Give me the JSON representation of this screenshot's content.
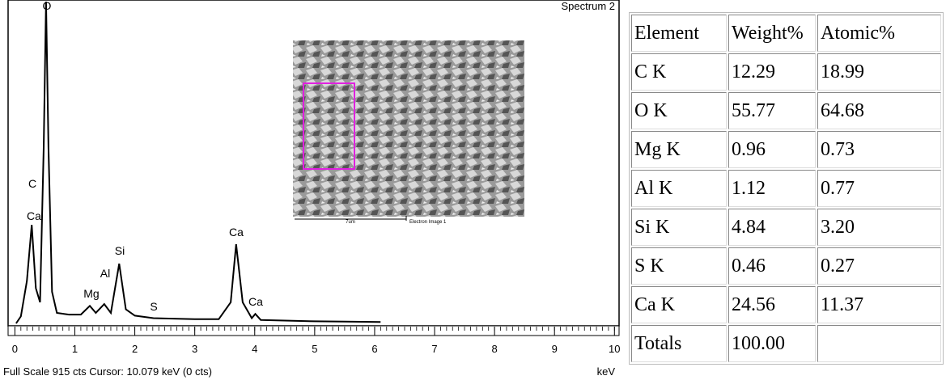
{
  "chart_data": {
    "type": "line",
    "title": "Spectrum 2",
    "x_label": "keV",
    "footer": "Full Scale 915 cts  Cursor: 10.079 keV (0 cts)",
    "x": [
      0.1,
      0.2,
      0.28,
      0.35,
      0.42,
      0.48,
      0.52,
      0.56,
      0.62,
      0.7,
      0.9,
      1.1,
      1.25,
      1.35,
      1.49,
      1.6,
      1.74,
      1.85,
      2.0,
      2.31,
      2.5,
      3.0,
      3.4,
      3.6,
      3.69,
      3.8,
      3.95,
      4.01,
      4.1,
      4.5,
      5.0,
      5.5,
      6.1
    ],
    "values": [
      20,
      120,
      280,
      100,
      60,
      500,
      915,
      500,
      90,
      30,
      25,
      25,
      50,
      30,
      55,
      30,
      170,
      40,
      22,
      15,
      14,
      12,
      12,
      60,
      225,
      60,
      15,
      27,
      10,
      8,
      6,
      5,
      4
    ],
    "color": "#000000",
    "xlim": [
      -0.1,
      10.05
    ],
    "ylim": [
      0,
      915
    ],
    "xticks": [
      0,
      1,
      2,
      3,
      4,
      5,
      6,
      7,
      8,
      9,
      10
    ],
    "peak_labels": [
      "O",
      "C",
      "Ca",
      "Mg",
      "Al",
      "Si",
      "S",
      "Ca",
      "Ca"
    ],
    "inset": {
      "scale_label": "7um",
      "caption": "Electron Image 1"
    }
  },
  "table": {
    "header": [
      "Element",
      "Weight%",
      "Atomic%"
    ],
    "rows": [
      [
        "C K",
        "12.29",
        "18.99"
      ],
      [
        "O K",
        "55.77",
        "64.68"
      ],
      [
        "Mg K",
        "0.96",
        "0.73"
      ],
      [
        "Al K",
        "1.12",
        "0.77"
      ],
      [
        "Si K",
        "4.84",
        "3.20"
      ],
      [
        "S K",
        "0.46",
        "0.27"
      ],
      [
        "Ca K",
        "24.56",
        "11.37"
      ],
      [
        "Totals",
        "100.00"
      ]
    ]
  }
}
